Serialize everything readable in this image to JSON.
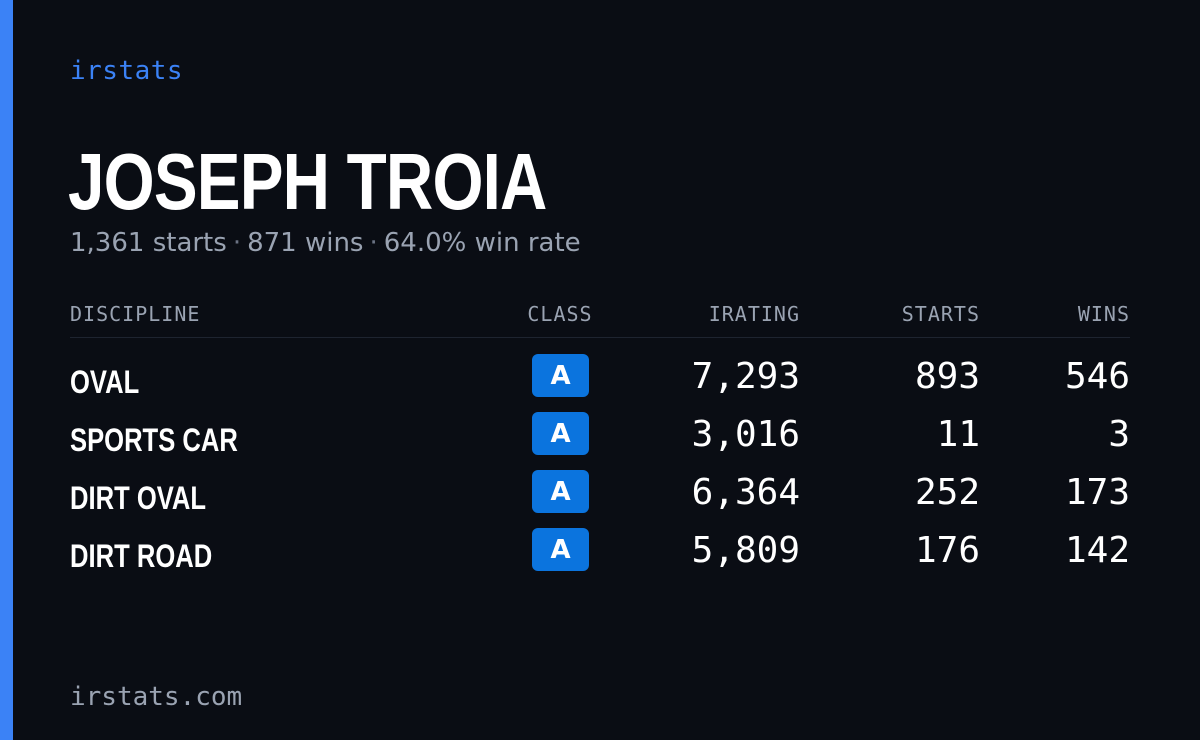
{
  "brand": "irstats",
  "driver": {
    "name": "JOSEPH TROIA",
    "starts_text": "1,361 starts",
    "wins_text": "871 wins",
    "win_rate_text": "64.0% win rate",
    "separator": "·"
  },
  "colors": {
    "accent": "#3b82f6",
    "background": "#0a0d14",
    "badge": "#0b74de",
    "muted_text": "#9aa3b2"
  },
  "table": {
    "headers": {
      "discipline": "DISCIPLINE",
      "class": "CLASS",
      "irating": "IRATING",
      "starts": "STARTS",
      "wins": "WINS"
    },
    "rows": [
      {
        "discipline": "OVAL",
        "class": "A",
        "irating": "7,293",
        "starts": "893",
        "wins": "546"
      },
      {
        "discipline": "SPORTS CAR",
        "class": "A",
        "irating": "3,016",
        "starts": "11",
        "wins": "3"
      },
      {
        "discipline": "DIRT OVAL",
        "class": "A",
        "irating": "6,364",
        "starts": "252",
        "wins": "173"
      },
      {
        "discipline": "DIRT ROAD",
        "class": "A",
        "irating": "5,809",
        "starts": "176",
        "wins": "142"
      }
    ]
  },
  "footer": {
    "site": "irstats.com"
  }
}
